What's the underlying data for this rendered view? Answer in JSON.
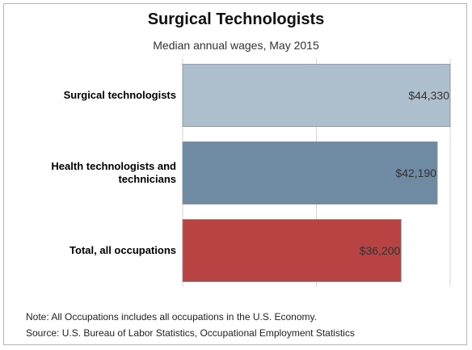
{
  "chart_data": {
    "type": "bar",
    "orientation": "horizontal",
    "title": "Surgical Technologists",
    "subtitle": "Median annual wages, May 2015",
    "categories": [
      [
        "Surgical technologists"
      ],
      [
        "Health technologists and",
        "technicians"
      ],
      [
        "Total, all occupations"
      ]
    ],
    "values": [
      44330,
      42190,
      36200
    ],
    "value_labels": [
      "$44,330",
      "$42,190",
      "$36,200"
    ],
    "colors": [
      "#adbfcc",
      "#6f8ba3",
      "#b94343"
    ],
    "xlim": [
      0,
      44330
    ],
    "grid": true
  },
  "notes": {
    "note": "Note: All Occupations includes all occupations in the U.S. Economy.",
    "source": "Source: U.S. Bureau of Labor Statistics, Occupational Employment Statistics"
  }
}
